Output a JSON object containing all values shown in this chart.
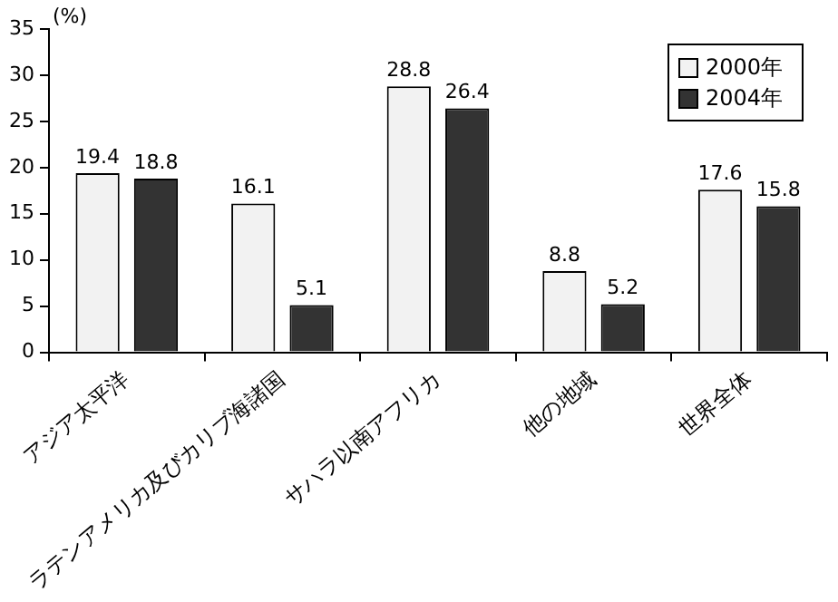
{
  "chart_data": {
    "type": "bar",
    "ylabel": "(%)",
    "categories": [
      "アジア太平洋",
      "ラテンアメリカ及びカリブ海諸国",
      "サハラ以南アフリカ",
      "他の地域",
      "世界全体"
    ],
    "series": [
      {
        "name": "2000年",
        "color": "#f2f2f2",
        "values": [
          19.4,
          16.1,
          28.8,
          8.8,
          17.6
        ]
      },
      {
        "name": "2004年",
        "color": "#333333",
        "values": [
          18.8,
          5.1,
          26.4,
          5.2,
          15.8
        ]
      }
    ],
    "ylim": [
      0,
      35
    ],
    "yticks": [
      0,
      5,
      10,
      15,
      20,
      25,
      30,
      35
    ],
    "grid": false,
    "legend": "top right",
    "data_labels": true
  }
}
